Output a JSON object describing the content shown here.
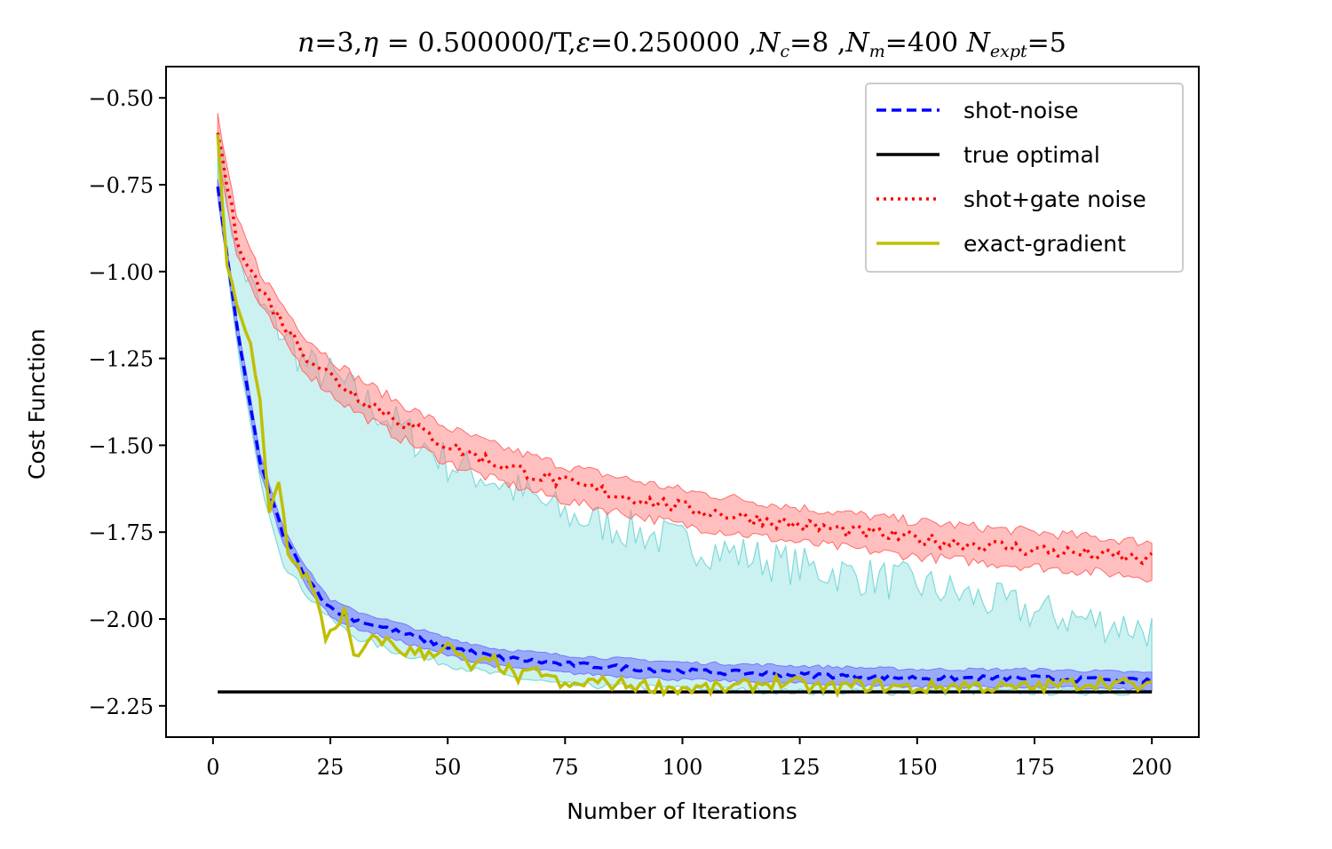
{
  "chart_data": {
    "type": "line",
    "title": "n=3,η = 0.500000/T,ε=0.250000 ,N_c=8 ,N_m=400 N_expt=5",
    "title_parts": {
      "n": "n",
      "n_val": "=3,",
      "eta": "η",
      "eta_val": " = 0.500000/T,",
      "eps": "ε",
      "eps_val": "=0.250000 ,",
      "nc": "N",
      "nc_sub": "c",
      "nc_val": "=8 ,",
      "nm": "N",
      "nm_sub": "m",
      "nm_val": "=400 ",
      "ne": "N",
      "ne_sub": "expt",
      "ne_val": "=5"
    },
    "xlabel": "Number of Iterations",
    "ylabel": "Cost Function",
    "xlim": [
      -10,
      210
    ],
    "ylim": [
      -2.34,
      -0.41
    ],
    "xticks": [
      0,
      25,
      50,
      75,
      100,
      125,
      150,
      175,
      200
    ],
    "xtick_labels": [
      "0",
      "25",
      "50",
      "75",
      "100",
      "125",
      "150",
      "175",
      "200"
    ],
    "yticks": [
      -0.5,
      -0.75,
      -1.0,
      -1.25,
      -1.5,
      -1.75,
      -2.0,
      -2.25
    ],
    "ytick_labels": [
      "−0.50",
      "−0.75",
      "−1.00",
      "−1.25",
      "−1.50",
      "−1.75",
      "−2.00",
      "−2.25"
    ],
    "legend_position": "top-right",
    "series": [
      {
        "name": "shot-noise",
        "color": "#0000ff",
        "style": "dashed",
        "band_color": "#6666ff",
        "x": [
          1,
          5,
          10,
          15,
          20,
          25,
          30,
          40,
          50,
          60,
          75,
          100,
          125,
          150,
          175,
          200
        ],
        "values": [
          -0.76,
          -1.15,
          -1.55,
          -1.76,
          -1.88,
          -1.97,
          -2.0,
          -2.04,
          -2.08,
          -2.11,
          -2.13,
          -2.15,
          -2.16,
          -2.17,
          -2.17,
          -2.18
        ]
      },
      {
        "name": "true optimal",
        "color": "#000000",
        "style": "solid",
        "x": [
          1,
          200
        ],
        "values": [
          -2.21,
          -2.21
        ]
      },
      {
        "name": "shot+gate noise",
        "color": "#ff0000",
        "style": "dotted",
        "band_color": "#ff7f7f",
        "x": [
          1,
          5,
          10,
          15,
          20,
          25,
          30,
          40,
          50,
          60,
          75,
          100,
          125,
          150,
          175,
          200
        ],
        "values": [
          -0.6,
          -0.9,
          -1.05,
          -1.15,
          -1.24,
          -1.3,
          -1.35,
          -1.43,
          -1.5,
          -1.55,
          -1.61,
          -1.68,
          -1.73,
          -1.77,
          -1.8,
          -1.83
        ]
      },
      {
        "name": "exact-gradient",
        "color": "#bfbf00",
        "style": "solid",
        "x": [
          1,
          3,
          5,
          8,
          10,
          12,
          14,
          16,
          18,
          20,
          22,
          24,
          26,
          28,
          30,
          35,
          40,
          45,
          50,
          55,
          60,
          65,
          70,
          75,
          80,
          90,
          100,
          110,
          120,
          130,
          140,
          150,
          160,
          170,
          180,
          190,
          200
        ],
        "values": [
          -0.6,
          -1.0,
          -1.08,
          -1.22,
          -1.38,
          -1.7,
          -1.6,
          -1.8,
          -1.85,
          -1.88,
          -1.95,
          -2.05,
          -2.02,
          -1.98,
          -2.12,
          -2.05,
          -2.09,
          -2.1,
          -2.08,
          -2.14,
          -2.12,
          -2.17,
          -2.15,
          -2.2,
          -2.18,
          -2.19,
          -2.2,
          -2.2,
          -2.18,
          -2.2,
          -2.19,
          -2.2,
          -2.19,
          -2.2,
          -2.19,
          -2.18,
          -2.2
        ]
      }
    ],
    "extra_band": {
      "name": "shot-noise spread",
      "color": "#b0eaea",
      "x": [
        1,
        5,
        10,
        15,
        20,
        25,
        30,
        40,
        50,
        60,
        75,
        100,
        125,
        150,
        175,
        200
      ],
      "upper": [
        -0.6,
        -0.95,
        -1.1,
        -1.18,
        -1.27,
        -1.3,
        -1.35,
        -1.45,
        -1.55,
        -1.6,
        -1.7,
        -1.78,
        -1.85,
        -1.9,
        -1.98,
        -2.03
      ],
      "lower": [
        -0.78,
        -1.2,
        -1.6,
        -1.84,
        -1.93,
        -2.0,
        -2.05,
        -2.1,
        -2.13,
        -2.16,
        -2.19,
        -2.2,
        -2.21,
        -2.21,
        -2.21,
        -2.21
      ]
    }
  }
}
